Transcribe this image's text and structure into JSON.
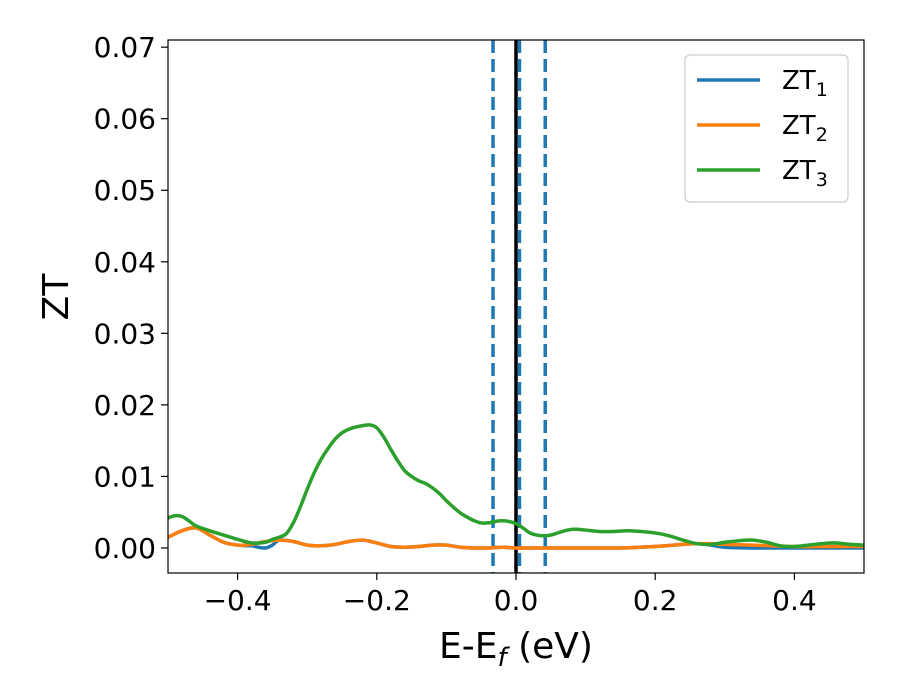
{
  "chart_data": {
    "type": "line",
    "title": "",
    "xlabel": {
      "main": "E-E",
      "sub": "f",
      "suffix": " (eV)"
    },
    "ylabel": "ZT",
    "xlim": [
      -0.5,
      0.5
    ],
    "ylim": [
      -0.0035,
      0.071
    ],
    "xticks": [
      {
        "value": -0.4,
        "label": "−0.4"
      },
      {
        "value": -0.2,
        "label": "−0.2"
      },
      {
        "value": 0.0,
        "label": "0.0"
      },
      {
        "value": 0.2,
        "label": "0.2"
      },
      {
        "value": 0.4,
        "label": "0.4"
      }
    ],
    "yticks": [
      {
        "value": 0.0,
        "label": "0.00"
      },
      {
        "value": 0.01,
        "label": "0.01"
      },
      {
        "value": 0.02,
        "label": "0.02"
      },
      {
        "value": 0.03,
        "label": "0.03"
      },
      {
        "value": 0.04,
        "label": "0.04"
      },
      {
        "value": 0.05,
        "label": "0.05"
      },
      {
        "value": 0.06,
        "label": "0.06"
      },
      {
        "value": 0.07,
        "label": "0.07"
      }
    ],
    "grid": false,
    "legend_position": "top-right",
    "vlines": [
      {
        "x": -0.033,
        "style": "dashed",
        "color": "#1f77b4"
      },
      {
        "x": 0.0,
        "style": "solid",
        "color": "#000000"
      },
      {
        "x": 0.005,
        "style": "dashed",
        "color": "#1f77b4"
      },
      {
        "x": 0.042,
        "style": "dashed",
        "color": "#1f77b4"
      }
    ],
    "series": [
      {
        "name": "ZT",
        "sub": "1",
        "color": "#1f77b4",
        "x": [
          -0.5,
          -0.48,
          -0.46,
          -0.44,
          -0.42,
          -0.4,
          -0.38,
          -0.37,
          -0.36,
          -0.35,
          -0.34,
          -0.32,
          -0.3,
          -0.28,
          -0.26,
          -0.24,
          -0.22,
          -0.2,
          -0.18,
          -0.16,
          -0.14,
          -0.12,
          -0.1,
          -0.08,
          -0.06,
          -0.04,
          -0.02,
          0.0,
          0.02,
          0.06,
          0.1,
          0.15,
          0.2,
          0.24,
          0.26,
          0.28,
          0.3,
          0.34,
          0.4,
          0.45,
          0.5
        ],
        "y": [
          0.0015,
          0.0024,
          0.0028,
          0.0018,
          0.0008,
          0.0004,
          0.0003,
          0.0001,
          0.0,
          0.0004,
          0.0011,
          0.0009,
          0.0004,
          0.0003,
          0.0005,
          0.0009,
          0.0011,
          0.0007,
          0.0002,
          0.0001,
          0.0002,
          0.0004,
          0.0004,
          0.0001,
          0.0,
          0.0,
          0.0001,
          0.0,
          0.0,
          0.0,
          0.0,
          0.0,
          0.0002,
          0.0005,
          0.0006,
          0.0004,
          0.0001,
          0.0,
          0.0,
          0.0,
          0.0
        ]
      },
      {
        "name": "ZT",
        "sub": "2",
        "color": "#ff7f0e",
        "x": [
          -0.5,
          -0.48,
          -0.46,
          -0.44,
          -0.42,
          -0.4,
          -0.38,
          -0.36,
          -0.34,
          -0.32,
          -0.3,
          -0.28,
          -0.26,
          -0.24,
          -0.22,
          -0.2,
          -0.18,
          -0.16,
          -0.14,
          -0.12,
          -0.1,
          -0.08,
          -0.06,
          -0.04,
          -0.02,
          0.0,
          0.02,
          0.06,
          0.1,
          0.15,
          0.2,
          0.24,
          0.26,
          0.28,
          0.3,
          0.34,
          0.4,
          0.45,
          0.5
        ],
        "y": [
          0.0015,
          0.0024,
          0.0028,
          0.0018,
          0.0008,
          0.0004,
          0.0005,
          0.0009,
          0.0011,
          0.0009,
          0.0004,
          0.0003,
          0.0005,
          0.0009,
          0.0011,
          0.0007,
          0.0002,
          0.0001,
          0.0002,
          0.0004,
          0.0004,
          0.0001,
          0.0,
          0.0,
          0.0001,
          0.0,
          0.0,
          0.0,
          0.0,
          0.0,
          0.0002,
          0.0005,
          0.0006,
          0.0006,
          0.0005,
          0.0004,
          0.0002,
          0.0002,
          0.0002
        ]
      },
      {
        "name": "ZT",
        "sub": "3",
        "color": "#2ca02c",
        "x": [
          -0.5,
          -0.49,
          -0.48,
          -0.47,
          -0.46,
          -0.44,
          -0.42,
          -0.4,
          -0.38,
          -0.36,
          -0.35,
          -0.34,
          -0.33,
          -0.32,
          -0.31,
          -0.3,
          -0.29,
          -0.28,
          -0.27,
          -0.26,
          -0.25,
          -0.24,
          -0.23,
          -0.22,
          -0.21,
          -0.2,
          -0.19,
          -0.18,
          -0.17,
          -0.16,
          -0.15,
          -0.14,
          -0.13,
          -0.12,
          -0.11,
          -0.1,
          -0.09,
          -0.08,
          -0.07,
          -0.06,
          -0.05,
          -0.04,
          -0.03,
          -0.02,
          -0.01,
          0.0,
          0.01,
          0.02,
          0.03,
          0.04,
          0.05,
          0.06,
          0.07,
          0.08,
          0.09,
          0.1,
          0.12,
          0.14,
          0.16,
          0.18,
          0.2,
          0.22,
          0.24,
          0.26,
          0.28,
          0.3,
          0.32,
          0.34,
          0.36,
          0.38,
          0.4,
          0.42,
          0.44,
          0.46,
          0.48,
          0.5
        ],
        "y": [
          0.0042,
          0.0045,
          0.0044,
          0.0038,
          0.0031,
          0.0024,
          0.0018,
          0.0012,
          0.0007,
          0.0008,
          0.0012,
          0.0015,
          0.002,
          0.0035,
          0.0057,
          0.0082,
          0.0105,
          0.0124,
          0.0139,
          0.0152,
          0.0161,
          0.0166,
          0.0169,
          0.0171,
          0.0172,
          0.0168,
          0.0155,
          0.0138,
          0.0122,
          0.0108,
          0.01,
          0.0094,
          0.009,
          0.0084,
          0.0076,
          0.0066,
          0.0057,
          0.0049,
          0.0043,
          0.0038,
          0.0035,
          0.0035,
          0.0037,
          0.0038,
          0.0037,
          0.0034,
          0.0028,
          0.0021,
          0.0018,
          0.0017,
          0.0018,
          0.0021,
          0.0024,
          0.0026,
          0.0026,
          0.0025,
          0.0023,
          0.0023,
          0.0024,
          0.0023,
          0.0021,
          0.0017,
          0.0011,
          0.0006,
          0.0005,
          0.0008,
          0.001,
          0.0011,
          0.0008,
          0.0003,
          0.0002,
          0.0004,
          0.0006,
          0.0007,
          0.0005,
          0.0004
        ]
      }
    ]
  }
}
